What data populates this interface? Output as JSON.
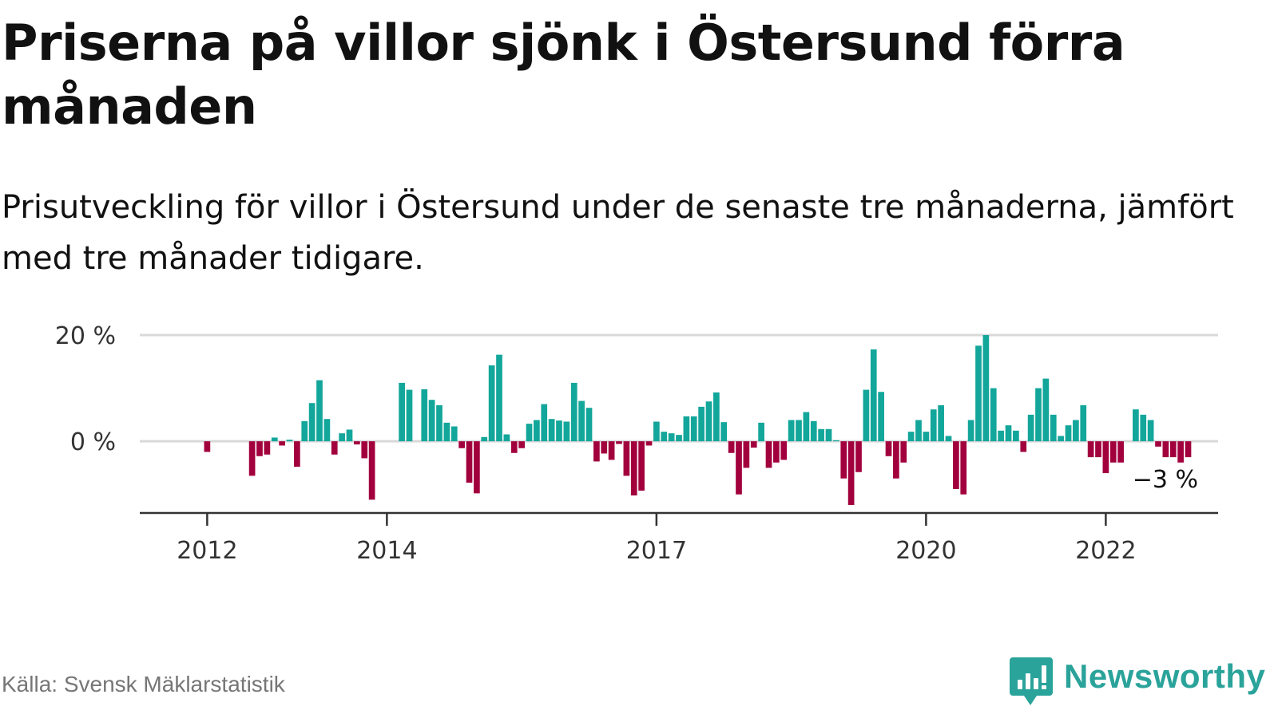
{
  "header": {
    "title": "Priserna på villor sjönk i Östersund förra månaden",
    "subtitle": "Prisutveckling för villor i Östersund under de senaste tre månaderna, jämfört med tre månader tidigare."
  },
  "footer": {
    "source": "Källa: Svensk Mäklarstatistik",
    "brand": "Newsworthy",
    "brand_icon": "newsworthy-logo-icon"
  },
  "colors": {
    "positive": "#13a69b",
    "negative": "#a2003d",
    "grid": "#d9d9d9",
    "axis": "#333333",
    "brand": "#2aa39a"
  },
  "chart_data": {
    "type": "bar",
    "title": "Priserna på villor sjönk i Östersund förra månaden",
    "subtitle": "Prisutveckling för villor i Östersund under de senaste tre månaderna, jämfört med tre månader tidigare.",
    "x_start": "2011-04",
    "x_end": "2023-04",
    "x_ticks": [
      {
        "date": "2012-01",
        "label": "2012"
      },
      {
        "date": "2014-01",
        "label": "2014"
      },
      {
        "date": "2017-01",
        "label": "2017"
      },
      {
        "date": "2020-01",
        "label": "2020"
      },
      {
        "date": "2022-01",
        "label": "2022"
      }
    ],
    "y_ticks": [
      {
        "value": 0,
        "label": "0 %"
      },
      {
        "value": 20,
        "label": "20 %"
      }
    ],
    "ylim": [
      -13.5,
      20
    ],
    "grid": true,
    "last_label": "−3 %",
    "series": [
      {
        "values": [
          {
            "month": "2012-01",
            "value": -2.0
          },
          {
            "month": "2012-07",
            "value": -6.5
          },
          {
            "month": "2012-08",
            "value": -2.8
          },
          {
            "month": "2012-09",
            "value": -2.5
          },
          {
            "month": "2012-10",
            "value": 0.7
          },
          {
            "month": "2012-11",
            "value": -0.8
          },
          {
            "month": "2012-12",
            "value": 0.3
          },
          {
            "month": "2013-01",
            "value": -4.8
          },
          {
            "month": "2013-02",
            "value": 3.8
          },
          {
            "month": "2013-03",
            "value": 7.2
          },
          {
            "month": "2013-04",
            "value": 11.5
          },
          {
            "month": "2013-05",
            "value": 4.2
          },
          {
            "month": "2013-06",
            "value": -2.5
          },
          {
            "month": "2013-07",
            "value": 1.5
          },
          {
            "month": "2013-08",
            "value": 2.2
          },
          {
            "month": "2013-09",
            "value": -0.6
          },
          {
            "month": "2013-10",
            "value": -3.2
          },
          {
            "month": "2013-11",
            "value": -11.0
          },
          {
            "month": "2014-03",
            "value": 11.0
          },
          {
            "month": "2014-04",
            "value": 9.7
          },
          {
            "month": "2014-06",
            "value": 9.8
          },
          {
            "month": "2014-07",
            "value": 7.8
          },
          {
            "month": "2014-08",
            "value": 6.8
          },
          {
            "month": "2014-09",
            "value": 3.5
          },
          {
            "month": "2014-10",
            "value": 2.8
          },
          {
            "month": "2014-11",
            "value": -1.3
          },
          {
            "month": "2014-12",
            "value": -7.8
          },
          {
            "month": "2015-01",
            "value": -9.8
          },
          {
            "month": "2015-02",
            "value": 0.8
          },
          {
            "month": "2015-03",
            "value": 14.3
          },
          {
            "month": "2015-04",
            "value": 16.3
          },
          {
            "month": "2015-05",
            "value": 1.3
          },
          {
            "month": "2015-06",
            "value": -2.2
          },
          {
            "month": "2015-07",
            "value": -1.3
          },
          {
            "month": "2015-08",
            "value": 3.3
          },
          {
            "month": "2015-09",
            "value": 4.0
          },
          {
            "month": "2015-10",
            "value": 7.0
          },
          {
            "month": "2015-11",
            "value": 4.2
          },
          {
            "month": "2015-12",
            "value": 3.9
          },
          {
            "month": "2016-01",
            "value": 3.7
          },
          {
            "month": "2016-02",
            "value": 11.0
          },
          {
            "month": "2016-03",
            "value": 7.6
          },
          {
            "month": "2016-04",
            "value": 6.3
          },
          {
            "month": "2016-05",
            "value": -3.8
          },
          {
            "month": "2016-06",
            "value": -2.3
          },
          {
            "month": "2016-07",
            "value": -3.5
          },
          {
            "month": "2016-08",
            "value": -0.5
          },
          {
            "month": "2016-09",
            "value": -6.5
          },
          {
            "month": "2016-10",
            "value": -10.2
          },
          {
            "month": "2016-11",
            "value": -9.3
          },
          {
            "month": "2016-12",
            "value": -0.8
          },
          {
            "month": "2017-01",
            "value": 3.7
          },
          {
            "month": "2017-02",
            "value": 1.8
          },
          {
            "month": "2017-03",
            "value": 1.5
          },
          {
            "month": "2017-04",
            "value": 1.2
          },
          {
            "month": "2017-05",
            "value": 4.7
          },
          {
            "month": "2017-06",
            "value": 4.7
          },
          {
            "month": "2017-07",
            "value": 6.5
          },
          {
            "month": "2017-08",
            "value": 7.5
          },
          {
            "month": "2017-09",
            "value": 9.2
          },
          {
            "month": "2017-10",
            "value": 3.6
          },
          {
            "month": "2017-11",
            "value": -2.2
          },
          {
            "month": "2017-12",
            "value": -10.0
          },
          {
            "month": "2018-01",
            "value": -5.0
          },
          {
            "month": "2018-02",
            "value": -1.2
          },
          {
            "month": "2018-03",
            "value": 3.5
          },
          {
            "month": "2018-04",
            "value": -5.0
          },
          {
            "month": "2018-05",
            "value": -4.0
          },
          {
            "month": "2018-06",
            "value": -3.5
          },
          {
            "month": "2018-07",
            "value": 4.0
          },
          {
            "month": "2018-08",
            "value": 4.0
          },
          {
            "month": "2018-09",
            "value": 5.5
          },
          {
            "month": "2018-10",
            "value": 3.8
          },
          {
            "month": "2018-11",
            "value": 2.3
          },
          {
            "month": "2018-12",
            "value": 2.3
          },
          {
            "month": "2019-01",
            "value": 0.2
          },
          {
            "month": "2019-02",
            "value": -7.0
          },
          {
            "month": "2019-03",
            "value": -12.0
          },
          {
            "month": "2019-04",
            "value": -5.8
          },
          {
            "month": "2019-05",
            "value": 9.7
          },
          {
            "month": "2019-06",
            "value": 17.3
          },
          {
            "month": "2019-07",
            "value": 9.3
          },
          {
            "month": "2019-08",
            "value": -2.8
          },
          {
            "month": "2019-09",
            "value": -7.0
          },
          {
            "month": "2019-10",
            "value": -4.0
          },
          {
            "month": "2019-11",
            "value": 1.8
          },
          {
            "month": "2019-12",
            "value": 4.0
          },
          {
            "month": "2020-01",
            "value": 1.8
          },
          {
            "month": "2020-02",
            "value": 6.0
          },
          {
            "month": "2020-03",
            "value": 6.8
          },
          {
            "month": "2020-04",
            "value": 1.0
          },
          {
            "month": "2020-05",
            "value": -9.0
          },
          {
            "month": "2020-06",
            "value": -10.0
          },
          {
            "month": "2020-07",
            "value": 4.0
          },
          {
            "month": "2020-08",
            "value": 18.0
          },
          {
            "month": "2020-09",
            "value": 20.0
          },
          {
            "month": "2020-10",
            "value": 10.0
          },
          {
            "month": "2020-11",
            "value": 2.0
          },
          {
            "month": "2020-12",
            "value": 3.0
          },
          {
            "month": "2021-01",
            "value": 2.0
          },
          {
            "month": "2021-02",
            "value": -2.0
          },
          {
            "month": "2021-03",
            "value": 5.0
          },
          {
            "month": "2021-04",
            "value": 10.0
          },
          {
            "month": "2021-05",
            "value": 11.8
          },
          {
            "month": "2021-06",
            "value": 5.0
          },
          {
            "month": "2021-07",
            "value": 1.0
          },
          {
            "month": "2021-08",
            "value": 3.0
          },
          {
            "month": "2021-09",
            "value": 4.0
          },
          {
            "month": "2021-10",
            "value": 6.8
          },
          {
            "month": "2021-11",
            "value": -3.0
          },
          {
            "month": "2021-12",
            "value": -3.0
          },
          {
            "month": "2022-01",
            "value": -6.0
          },
          {
            "month": "2022-02",
            "value": -4.0
          },
          {
            "month": "2022-03",
            "value": -4.0
          },
          {
            "month": "2022-05",
            "value": 6.0
          },
          {
            "month": "2022-06",
            "value": 5.0
          },
          {
            "month": "2022-07",
            "value": 4.0
          },
          {
            "month": "2022-08",
            "value": -1.0
          },
          {
            "month": "2022-09",
            "value": -3.0
          },
          {
            "month": "2022-10",
            "value": -3.0
          },
          {
            "month": "2022-11",
            "value": -4.0
          },
          {
            "month": "2022-12",
            "value": -3.0
          }
        ]
      }
    ]
  }
}
